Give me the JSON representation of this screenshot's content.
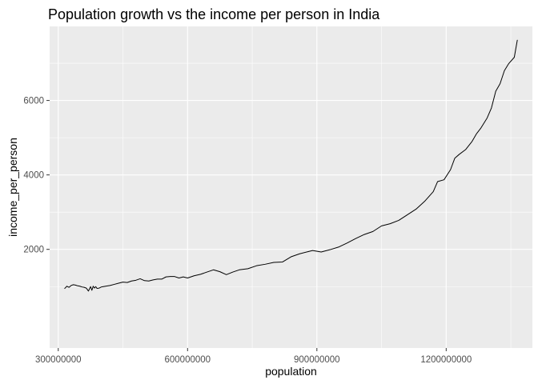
{
  "chart_data": {
    "type": "line",
    "title": "Population growth vs the income per person in India",
    "xlabel": "population",
    "ylabel": "income_per_person",
    "xlim": [
      280000000,
      1400000000
    ],
    "ylim": [
      -650,
      7990
    ],
    "x_ticks": [
      {
        "value": 300000000,
        "label": "300000000"
      },
      {
        "value": 600000000,
        "label": "600000000"
      },
      {
        "value": 900000000,
        "label": "900000000"
      },
      {
        "value": 1200000000,
        "label": "1200000000"
      }
    ],
    "y_ticks": [
      {
        "value": 2000,
        "label": "2000"
      },
      {
        "value": 4000,
        "label": "4000"
      },
      {
        "value": 6000,
        "label": "6000"
      }
    ],
    "grid": true,
    "background_color": "#ebebeb",
    "grid_color": "#ffffff",
    "line_color": "#000000",
    "series": [
      {
        "x": [
          315000000,
          320000000,
          325000000,
          330000000,
          335000000,
          340000000,
          345000000,
          350000000,
          355000000,
          360000000,
          365000000,
          370000000,
          375000000,
          378000000,
          381000000,
          384000000,
          387000000,
          390000000,
          395000000,
          400000000,
          410000000,
          420000000,
          430000000,
          440000000,
          450000000,
          460000000,
          470000000,
          480000000,
          490000000,
          500000000,
          510000000,
          520000000,
          530000000,
          540000000,
          550000000,
          560000000,
          570000000,
          580000000,
          590000000,
          600000000,
          615000000,
          630000000,
          645000000,
          660000000,
          675000000,
          690000000,
          705000000,
          720000000,
          740000000,
          760000000,
          780000000,
          800000000,
          820000000,
          840000000,
          860000000,
          880000000,
          890000000,
          910000000,
          930000000,
          950000000,
          970000000,
          990000000,
          1010000000,
          1030000000,
          1050000000,
          1070000000,
          1090000000,
          1110000000,
          1130000000,
          1150000000,
          1170000000,
          1180000000,
          1195000000,
          1210000000,
          1220000000,
          1230000000,
          1245000000,
          1260000000,
          1270000000,
          1280000000,
          1295000000,
          1305000000,
          1315000000,
          1325000000,
          1335000000,
          1345000000,
          1358000000,
          1365000000
        ],
        "y": [
          950,
          1010,
          980,
          1030,
          1050,
          1040,
          1020,
          1010,
          990,
          980,
          960,
          880,
          1000,
          900,
          1010,
          960,
          1000,
          950,
          960,
          990,
          1010,
          1030,
          1060,
          1090,
          1120,
          1110,
          1150,
          1170,
          1210,
          1160,
          1150,
          1180,
          1200,
          1200,
          1260,
          1270,
          1270,
          1230,
          1260,
          1230,
          1290,
          1330,
          1390,
          1450,
          1400,
          1320,
          1390,
          1450,
          1480,
          1560,
          1600,
          1650,
          1660,
          1800,
          1880,
          1940,
          1970,
          1930,
          1990,
          2060,
          2170,
          2290,
          2400,
          2480,
          2630,
          2690,
          2780,
          2930,
          3080,
          3290,
          3550,
          3820,
          3870,
          4140,
          4450,
          4550,
          4680,
          4900,
          5100,
          5250,
          5530,
          5800,
          6250,
          6450,
          6800,
          6990,
          7160,
          7620
        ]
      }
    ]
  }
}
